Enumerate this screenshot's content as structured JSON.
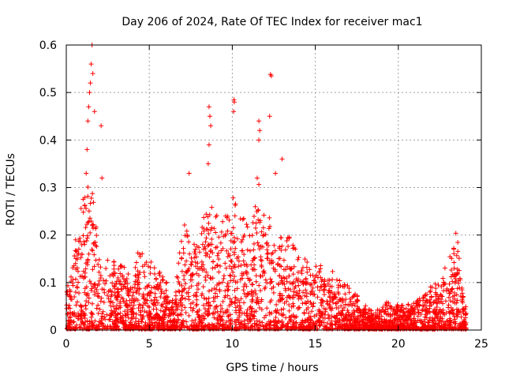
{
  "chart_data": {
    "type": "scatter",
    "title": "Day 206 of 2024, Rate Of TEC Index for receiver mac1",
    "xlabel": "GPS time / hours",
    "ylabel": "ROTI / TECUs",
    "xlim": [
      0,
      25
    ],
    "ylim": [
      0,
      0.6
    ],
    "xticks": [
      "0",
      "5",
      "10",
      "15",
      "20",
      "25"
    ],
    "yticks": [
      "0",
      "0.1",
      "0.2",
      "0.3",
      "0.4",
      "0.5",
      "0.6"
    ],
    "grid": true,
    "marker": "+",
    "color": "#ff0000",
    "series": [
      {
        "name": "ROTI",
        "envelope_hours": [
          0.0,
          0.5,
          1.0,
          1.5,
          2.0,
          2.5,
          3.0,
          3.5,
          4.0,
          4.5,
          5.0,
          5.5,
          6.0,
          6.5,
          7.0,
          7.5,
          8.0,
          8.5,
          9.0,
          9.5,
          10.0,
          10.5,
          11.0,
          11.5,
          12.0,
          12.5,
          13.0,
          13.5,
          14.0,
          14.5,
          15.0,
          15.5,
          16.0,
          16.5,
          17.0,
          17.5,
          18.0,
          18.5,
          19.0,
          19.5,
          20.0,
          20.5,
          21.0,
          21.5,
          22.0,
          22.5,
          23.0,
          23.5,
          24.0
        ],
        "envelope_roti": [
          0.07,
          0.17,
          0.27,
          0.32,
          0.16,
          0.15,
          0.14,
          0.13,
          0.1,
          0.2,
          0.14,
          0.14,
          0.1,
          0.05,
          0.23,
          0.2,
          0.17,
          0.28,
          0.24,
          0.22,
          0.27,
          0.25,
          0.2,
          0.3,
          0.26,
          0.2,
          0.19,
          0.2,
          0.15,
          0.14,
          0.15,
          0.13,
          0.12,
          0.1,
          0.09,
          0.07,
          0.05,
          0.04,
          0.05,
          0.06,
          0.05,
          0.05,
          0.06,
          0.07,
          0.09,
          0.1,
          0.14,
          0.2,
          0.05
        ],
        "peaks": [
          {
            "x": 1.2,
            "y": 0.33
          },
          {
            "x": 1.25,
            "y": 0.38
          },
          {
            "x": 1.3,
            "y": 0.44
          },
          {
            "x": 1.35,
            "y": 0.47
          },
          {
            "x": 1.4,
            "y": 0.5
          },
          {
            "x": 1.45,
            "y": 0.52
          },
          {
            "x": 1.5,
            "y": 0.56
          },
          {
            "x": 1.55,
            "y": 0.6
          },
          {
            "x": 1.6,
            "y": 0.54
          },
          {
            "x": 1.7,
            "y": 0.46
          },
          {
            "x": 2.1,
            "y": 0.43
          },
          {
            "x": 2.15,
            "y": 0.32
          },
          {
            "x": 7.4,
            "y": 0.33
          },
          {
            "x": 8.6,
            "y": 0.47
          },
          {
            "x": 8.65,
            "y": 0.45
          },
          {
            "x": 8.7,
            "y": 0.43
          },
          {
            "x": 8.6,
            "y": 0.39
          },
          {
            "x": 8.55,
            "y": 0.35
          },
          {
            "x": 10.1,
            "y": 0.485
          },
          {
            "x": 10.12,
            "y": 0.48
          },
          {
            "x": 10.08,
            "y": 0.46
          },
          {
            "x": 11.6,
            "y": 0.44
          },
          {
            "x": 11.65,
            "y": 0.42
          },
          {
            "x": 11.6,
            "y": 0.4
          },
          {
            "x": 12.3,
            "y": 0.538
          },
          {
            "x": 12.35,
            "y": 0.535
          },
          {
            "x": 12.25,
            "y": 0.45
          },
          {
            "x": 13.0,
            "y": 0.36
          },
          {
            "x": 12.6,
            "y": 0.33
          },
          {
            "x": 11.5,
            "y": 0.32
          }
        ]
      }
    ]
  }
}
